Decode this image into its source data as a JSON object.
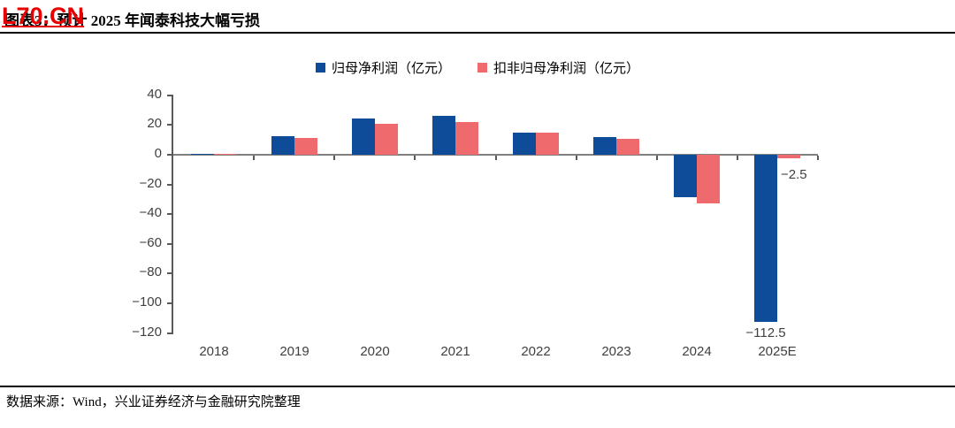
{
  "watermark": {
    "text": "L70.CN",
    "color": "#e60000"
  },
  "header": {
    "title": "图表3：预计 2025 年闻泰科技大幅亏损"
  },
  "source": {
    "label": "数据来源：Wind，兴业证券经济与金融研究院整理"
  },
  "chart_data": {
    "type": "bar",
    "title": "预计 2025 年闻泰科技大幅亏损",
    "categories": [
      "2018",
      "2019",
      "2020",
      "2021",
      "2022",
      "2023",
      "2024",
      "2025E"
    ],
    "series": [
      {
        "name": "归母净利润（亿元）",
        "color": "#0e4c9a",
        "values": [
          0.6,
          12.5,
          24.2,
          26.1,
          14.6,
          11.8,
          -28.3,
          -112.5
        ]
      },
      {
        "name": "扣非归母净利润（亿元）",
        "color": "#ee6a6c",
        "values": [
          0.3,
          11.1,
          20.6,
          22.2,
          15.1,
          11.0,
          -32.5,
          -2.5
        ]
      }
    ],
    "ylim": [
      -120,
      40
    ],
    "ytick_step": 20,
    "grid": false,
    "legend_position": "top",
    "colors": {
      "axis": "#595959",
      "zero_line": "#808080",
      "label": "#404040"
    },
    "annotations": [
      {
        "text": "−112.5",
        "category": "2025E",
        "series": 0,
        "placement": "below-bar"
      },
      {
        "text": "−2.5",
        "category": "2025E",
        "series": 1,
        "placement": "right-of-bar"
      }
    ]
  }
}
